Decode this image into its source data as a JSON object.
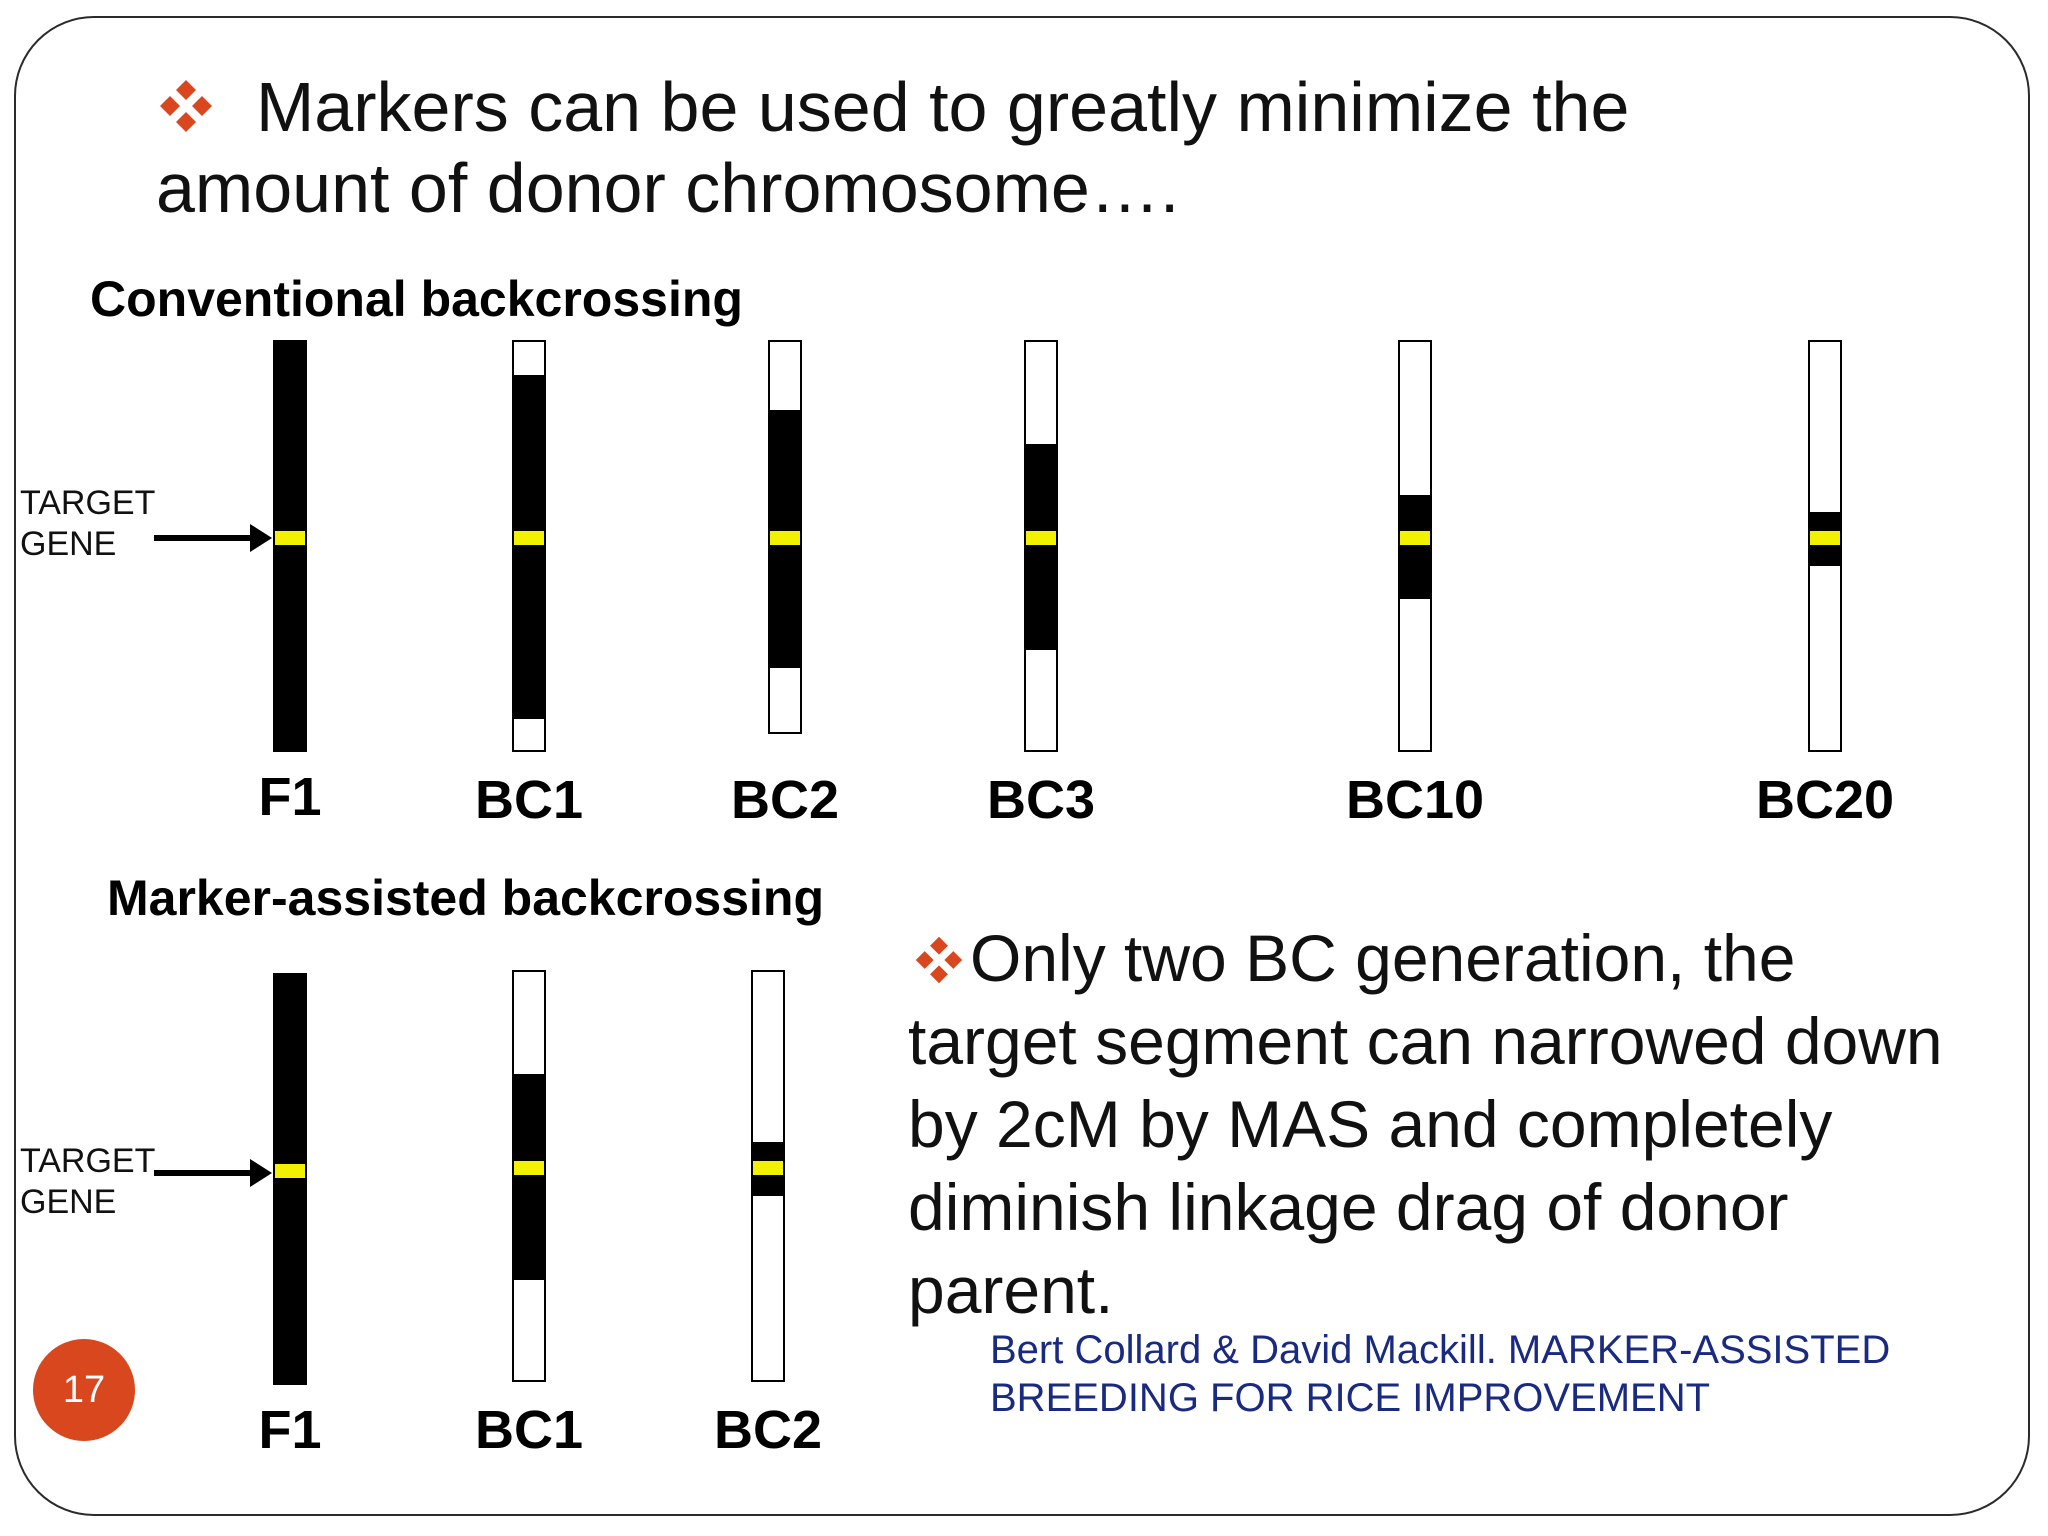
{
  "slide": {
    "title_line1": "Markers can be used to greatly minimize the",
    "title_line2": "amount of donor chromosome….",
    "bullet_icon": "diamond-cluster-bullet-icon",
    "accent_color": "#d9471f",
    "donor_color": "#000000",
    "target_gene_color": "#f2f200",
    "page_number": "17"
  },
  "conventional": {
    "label": "Conventional backcrossing",
    "target_label_line1": "TARGET",
    "target_label_line2": "GENE",
    "generations": [
      {
        "name": "F1"
      },
      {
        "name": "BC1"
      },
      {
        "name": "BC2"
      },
      {
        "name": "BC3"
      },
      {
        "name": "BC10"
      },
      {
        "name": "BC20"
      }
    ]
  },
  "marker_assisted": {
    "label": "Marker-assisted backcrossing",
    "target_label_line1": "TARGET",
    "target_label_line2": "GENE",
    "generations": [
      {
        "name": "F1"
      },
      {
        "name": "BC1"
      },
      {
        "name": "BC2"
      }
    ]
  },
  "note": {
    "lines": [
      "Only two BC generation, the",
      "target segment can narrowed down",
      "by 2cM by MAS and completely",
      "diminish linkage drag of donor",
      "parent."
    ],
    "citation_line1": "Bert Collard & David Mackill. MARKER-ASSISTED",
    "citation_line2": "BREEDING FOR RICE IMPROVEMENT"
  }
}
